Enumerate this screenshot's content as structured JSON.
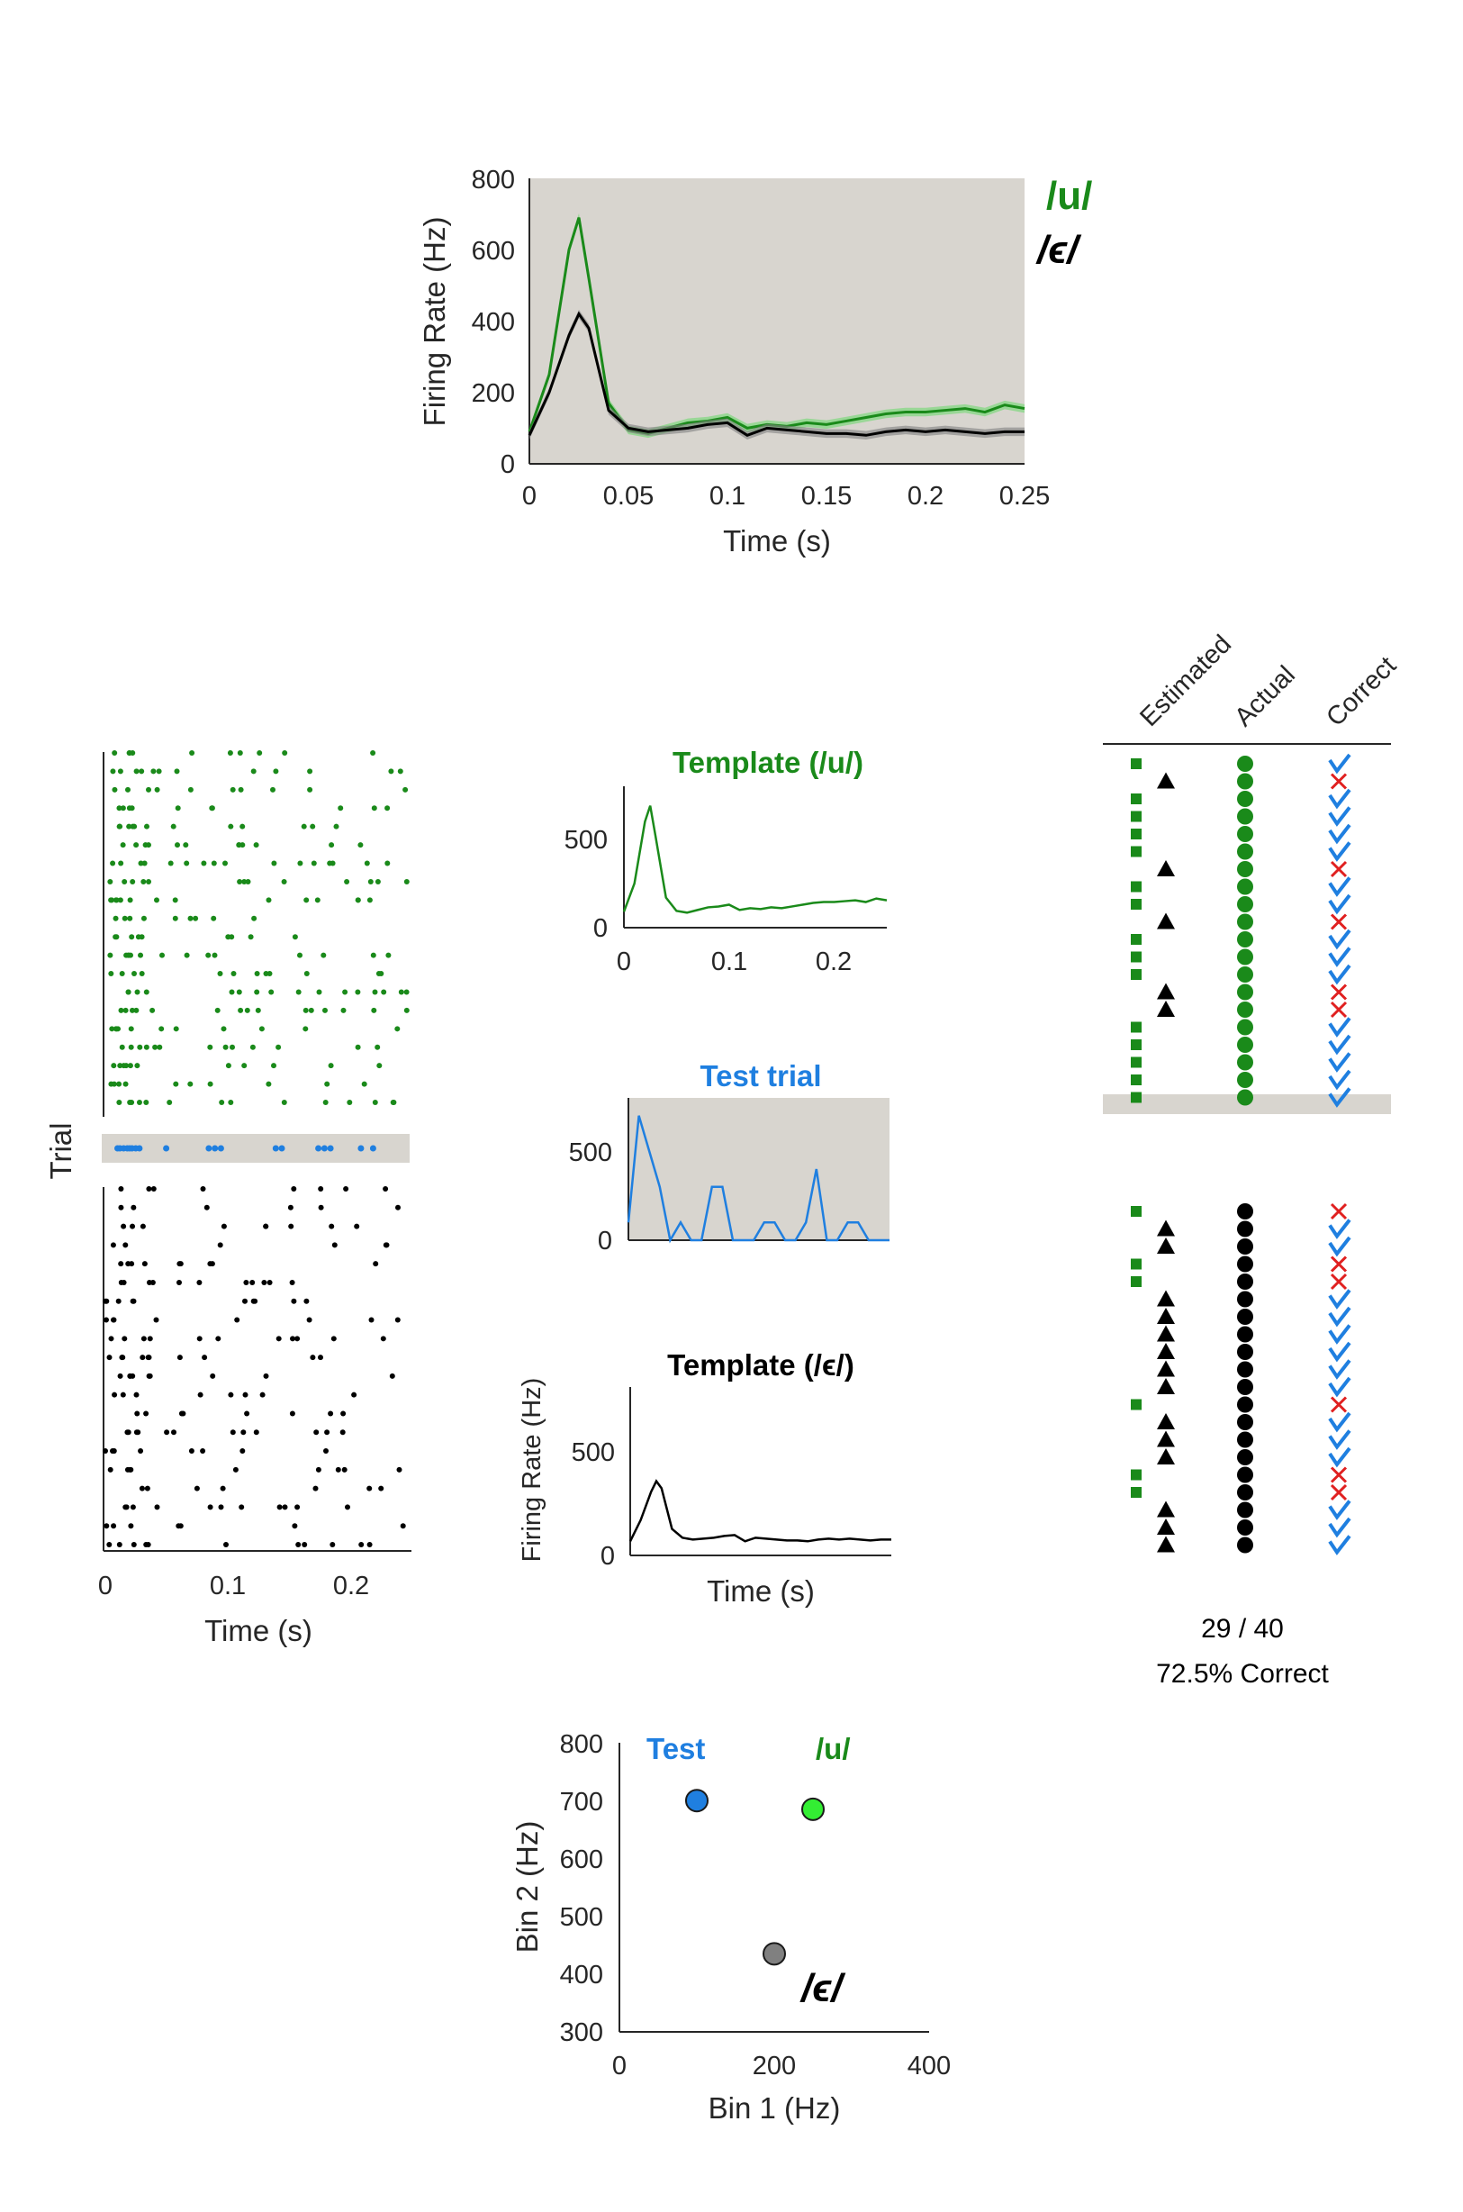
{
  "colors": {
    "u": "#1a8a1a",
    "u_light": "#33ee33",
    "e": "#000000",
    "e_light": "#808080",
    "test": "#1f7fe0",
    "wrong": "#e02020",
    "panel_bg": "#d8d5cf"
  },
  "chart_data": [
    {
      "id": "psth",
      "type": "line",
      "xlabel": "Time (s)",
      "ylabel": "Firing Rate (Hz)",
      "xlim": [
        0,
        0.25
      ],
      "ylim": [
        0,
        800
      ],
      "xticks": [
        "0",
        "0.05",
        "0.1",
        "0.15",
        "0.2",
        "0.25"
      ],
      "yticks": [
        "0",
        "200",
        "400",
        "600",
        "800"
      ],
      "legend": [
        "/u/",
        "/ϵ/"
      ],
      "x": [
        0,
        0.01,
        0.02,
        0.025,
        0.03,
        0.04,
        0.05,
        0.06,
        0.07,
        0.08,
        0.09,
        0.1,
        0.11,
        0.12,
        0.13,
        0.14,
        0.15,
        0.16,
        0.17,
        0.18,
        0.19,
        0.2,
        0.21,
        0.22,
        0.23,
        0.24,
        0.25
      ],
      "series": [
        {
          "name": "/u/",
          "values": [
            90,
            250,
            600,
            690,
            520,
            170,
            95,
            85,
            100,
            115,
            120,
            130,
            100,
            110,
            105,
            115,
            110,
            120,
            130,
            140,
            145,
            145,
            150,
            155,
            145,
            165,
            155
          ]
        },
        {
          "name": "/ϵ/",
          "values": [
            80,
            200,
            360,
            420,
            380,
            150,
            100,
            90,
            95,
            100,
            110,
            115,
            80,
            100,
            95,
            90,
            85,
            85,
            80,
            90,
            95,
            90,
            95,
            90,
            85,
            90,
            90
          ]
        }
      ]
    },
    {
      "id": "raster",
      "type": "scatter",
      "xlabel": "Time (s)",
      "ylabel": "Trial",
      "xlim": [
        0,
        0.25
      ],
      "xticks": [
        "0",
        "0.1",
        "0.2"
      ],
      "u_trials": 20,
      "e_trials": 20
    },
    {
      "id": "template_u",
      "type": "line",
      "title": "Template (/u/)",
      "yticks": [
        "0",
        "500"
      ],
      "xticks": [
        "0",
        "0.1",
        "0.2"
      ],
      "xlim": [
        0,
        0.25
      ],
      "ylim": [
        0,
        800
      ],
      "x": [
        0,
        0.01,
        0.02,
        0.025,
        0.03,
        0.04,
        0.05,
        0.06,
        0.07,
        0.08,
        0.09,
        0.1,
        0.11,
        0.12,
        0.13,
        0.14,
        0.15,
        0.16,
        0.17,
        0.18,
        0.19,
        0.2,
        0.21,
        0.22,
        0.23,
        0.24,
        0.25
      ],
      "values": [
        90,
        250,
        600,
        690,
        520,
        170,
        95,
        85,
        100,
        115,
        120,
        130,
        100,
        110,
        105,
        115,
        110,
        120,
        130,
        140,
        145,
        145,
        150,
        155,
        145,
        165,
        155
      ]
    },
    {
      "id": "test_trial",
      "type": "line",
      "title": "Test trial",
      "yticks": [
        "0",
        "500"
      ],
      "xlim": [
        0,
        0.25
      ],
      "ylim": [
        0,
        800
      ],
      "x": [
        0,
        0.01,
        0.02,
        0.03,
        0.04,
        0.05,
        0.06,
        0.07,
        0.08,
        0.09,
        0.1,
        0.11,
        0.12,
        0.13,
        0.14,
        0.15,
        0.16,
        0.17,
        0.18,
        0.19,
        0.2,
        0.21,
        0.22,
        0.23,
        0.24,
        0.25
      ],
      "values": [
        100,
        700,
        500,
        300,
        0,
        100,
        0,
        0,
        300,
        300,
        0,
        0,
        0,
        100,
        100,
        0,
        0,
        100,
        400,
        0,
        0,
        100,
        100,
        0,
        0,
        0
      ]
    },
    {
      "id": "template_e",
      "type": "line",
      "title": "Template (/ϵ/)",
      "xlabel": "Time (s)",
      "ylabel": "Firing Rate (Hz)",
      "yticks": [
        "0",
        "500"
      ],
      "xlim": [
        0,
        0.25
      ],
      "ylim": [
        0,
        800
      ],
      "x": [
        0,
        0.01,
        0.02,
        0.025,
        0.03,
        0.04,
        0.05,
        0.06,
        0.07,
        0.08,
        0.09,
        0.1,
        0.11,
        0.12,
        0.13,
        0.14,
        0.15,
        0.16,
        0.17,
        0.18,
        0.19,
        0.2,
        0.21,
        0.22,
        0.23,
        0.24,
        0.25
      ],
      "values": [
        80,
        200,
        360,
        420,
        380,
        150,
        100,
        90,
        95,
        100,
        110,
        115,
        80,
        100,
        95,
        90,
        85,
        85,
        80,
        90,
        95,
        90,
        95,
        90,
        85,
        90,
        90
      ]
    },
    {
      "id": "classification",
      "type": "table",
      "columns": [
        "Estimated",
        "Actual",
        "Correct"
      ],
      "u_estimates": [
        "u",
        "e",
        "u",
        "u",
        "u",
        "u",
        "e",
        "u",
        "u",
        "e",
        "u",
        "u",
        "u",
        "e",
        "e",
        "u",
        "u",
        "u",
        "u",
        "u"
      ],
      "e_estimates": [
        "u",
        "e",
        "e",
        "u",
        "u",
        "e",
        "e",
        "e",
        "e",
        "e",
        "e",
        "u",
        "e",
        "e",
        "e",
        "u",
        "u",
        "e",
        "e",
        "e"
      ],
      "score": "29 / 40",
      "percent": "72.5% Correct"
    },
    {
      "id": "bin_scatter",
      "type": "scatter",
      "xlabel": "Bin 1 (Hz)",
      "ylabel": "Bin 2 (Hz)",
      "xlim": [
        0,
        400
      ],
      "ylim": [
        300,
        800
      ],
      "xticks": [
        "0",
        "200",
        "400"
      ],
      "yticks": [
        "300",
        "400",
        "500",
        "600",
        "700",
        "800"
      ],
      "points": [
        {
          "name": "Test",
          "x": 100,
          "y": 700
        },
        {
          "name": "/u/",
          "x": 250,
          "y": 685
        },
        {
          "name": "/ϵ/",
          "x": 200,
          "y": 435
        }
      ]
    }
  ]
}
